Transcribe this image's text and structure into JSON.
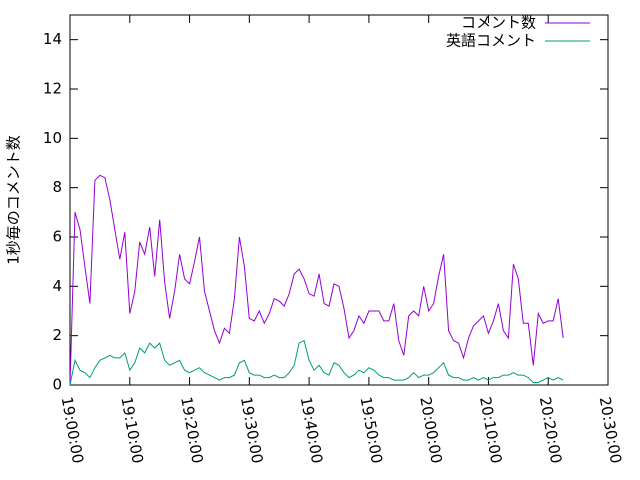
{
  "chart_data": {
    "type": "line",
    "ylabel": "1秒毎のコメント数",
    "x": [
      "19:00:00",
      "19:00:50",
      "19:01:40",
      "19:02:30",
      "19:03:20",
      "19:04:10",
      "19:05:00",
      "19:05:50",
      "19:06:40",
      "19:07:30",
      "19:08:20",
      "19:09:10",
      "19:10:00",
      "19:10:50",
      "19:11:40",
      "19:12:30",
      "19:13:20",
      "19:14:10",
      "19:15:00",
      "19:15:50",
      "19:16:40",
      "19:17:30",
      "19:18:20",
      "19:19:10",
      "19:20:00",
      "19:20:50",
      "19:21:40",
      "19:22:30",
      "19:23:20",
      "19:24:10",
      "19:25:00",
      "19:25:50",
      "19:26:40",
      "19:27:30",
      "19:28:20",
      "19:29:10",
      "19:30:00",
      "19:30:50",
      "19:31:40",
      "19:32:30",
      "19:33:20",
      "19:34:10",
      "19:35:00",
      "19:35:50",
      "19:36:40",
      "19:37:30",
      "19:38:20",
      "19:39:10",
      "19:40:00",
      "19:40:50",
      "19:41:40",
      "19:42:30",
      "19:43:20",
      "19:44:10",
      "19:45:00",
      "19:45:50",
      "19:46:40",
      "19:47:30",
      "19:48:20",
      "19:49:10",
      "19:50:00",
      "19:50:50",
      "19:51:40",
      "19:52:30",
      "19:53:20",
      "19:54:10",
      "19:55:00",
      "19:55:50",
      "19:56:40",
      "19:57:30",
      "19:58:20",
      "19:59:10",
      "20:00:00",
      "20:00:50",
      "20:01:40",
      "20:02:30",
      "20:03:20",
      "20:04:10",
      "20:05:00",
      "20:05:50",
      "20:06:40",
      "20:07:30",
      "20:08:20",
      "20:09:10",
      "20:10:00",
      "20:10:50",
      "20:11:40",
      "20:12:30",
      "20:13:20",
      "20:14:10",
      "20:15:00",
      "20:15:50",
      "20:16:40",
      "20:17:30",
      "20:18:20",
      "20:19:10",
      "20:20:00",
      "20:20:50",
      "20:21:40",
      "20:22:30"
    ],
    "series": [
      {
        "name": "コメント数",
        "color": "#9400d3",
        "values": [
          0,
          7.0,
          6.3,
          4.8,
          3.3,
          8.3,
          8.5,
          8.4,
          7.5,
          6.3,
          5.1,
          6.2,
          2.9,
          3.8,
          5.8,
          5.3,
          6.4,
          4.4,
          6.7,
          4.2,
          2.7,
          3.8,
          5.3,
          4.3,
          4.1,
          5.0,
          6.0,
          3.8,
          3.0,
          2.2,
          1.7,
          2.3,
          2.1,
          3.5,
          6.0,
          4.8,
          2.7,
          2.6,
          3.0,
          2.5,
          2.9,
          3.5,
          3.4,
          3.2,
          3.7,
          4.5,
          4.7,
          4.3,
          3.7,
          3.6,
          4.5,
          3.3,
          3.2,
          4.1,
          4.0,
          3.1,
          1.9,
          2.2,
          2.8,
          2.5,
          3.0,
          3.0,
          3.0,
          2.6,
          2.6,
          3.3,
          1.8,
          1.2,
          2.8,
          3.0,
          2.8,
          4.0,
          3.0,
          3.3,
          4.4,
          5.3,
          2.2,
          1.8,
          1.7,
          1.1,
          1.9,
          2.4,
          2.6,
          2.8,
          2.1,
          2.6,
          3.3,
          2.2,
          1.9,
          4.9,
          4.3,
          2.5,
          2.5,
          0.8,
          2.9,
          2.5,
          2.6,
          2.6,
          3.5,
          1.9
        ]
      },
      {
        "name": "英語コメント",
        "color": "#009e73",
        "values": [
          0,
          1.0,
          0.6,
          0.5,
          0.3,
          0.7,
          1.0,
          1.1,
          1.2,
          1.1,
          1.1,
          1.3,
          0.6,
          0.9,
          1.5,
          1.3,
          1.7,
          1.5,
          1.7,
          1.0,
          0.8,
          0.9,
          1.0,
          0.6,
          0.5,
          0.6,
          0.7,
          0.5,
          0.4,
          0.3,
          0.2,
          0.3,
          0.3,
          0.4,
          0.9,
          1.0,
          0.5,
          0.4,
          0.4,
          0.3,
          0.3,
          0.4,
          0.3,
          0.3,
          0.5,
          0.8,
          1.7,
          1.8,
          1.0,
          0.6,
          0.8,
          0.5,
          0.4,
          0.9,
          0.8,
          0.5,
          0.3,
          0.4,
          0.6,
          0.5,
          0.7,
          0.6,
          0.4,
          0.3,
          0.3,
          0.2,
          0.2,
          0.2,
          0.3,
          0.5,
          0.3,
          0.4,
          0.4,
          0.5,
          0.7,
          0.9,
          0.4,
          0.3,
          0.3,
          0.2,
          0.2,
          0.3,
          0.2,
          0.3,
          0.2,
          0.3,
          0.3,
          0.4,
          0.4,
          0.5,
          0.4,
          0.4,
          0.3,
          0.1,
          0.1,
          0.2,
          0.3,
          0.2,
          0.3,
          0.2
        ]
      }
    ],
    "xlim": [
      "19:00:00",
      "20:30:00"
    ],
    "xticks": [
      "19:00:00",
      "19:10:00",
      "19:20:00",
      "19:30:00",
      "19:40:00",
      "19:50:00",
      "20:00:00",
      "20:10:00",
      "20:20:00",
      "20:30:00"
    ],
    "ylim": [
      0,
      15
    ],
    "yticks": [
      0,
      2,
      4,
      6,
      8,
      10,
      12,
      14
    ],
    "legend": "top-right"
  }
}
